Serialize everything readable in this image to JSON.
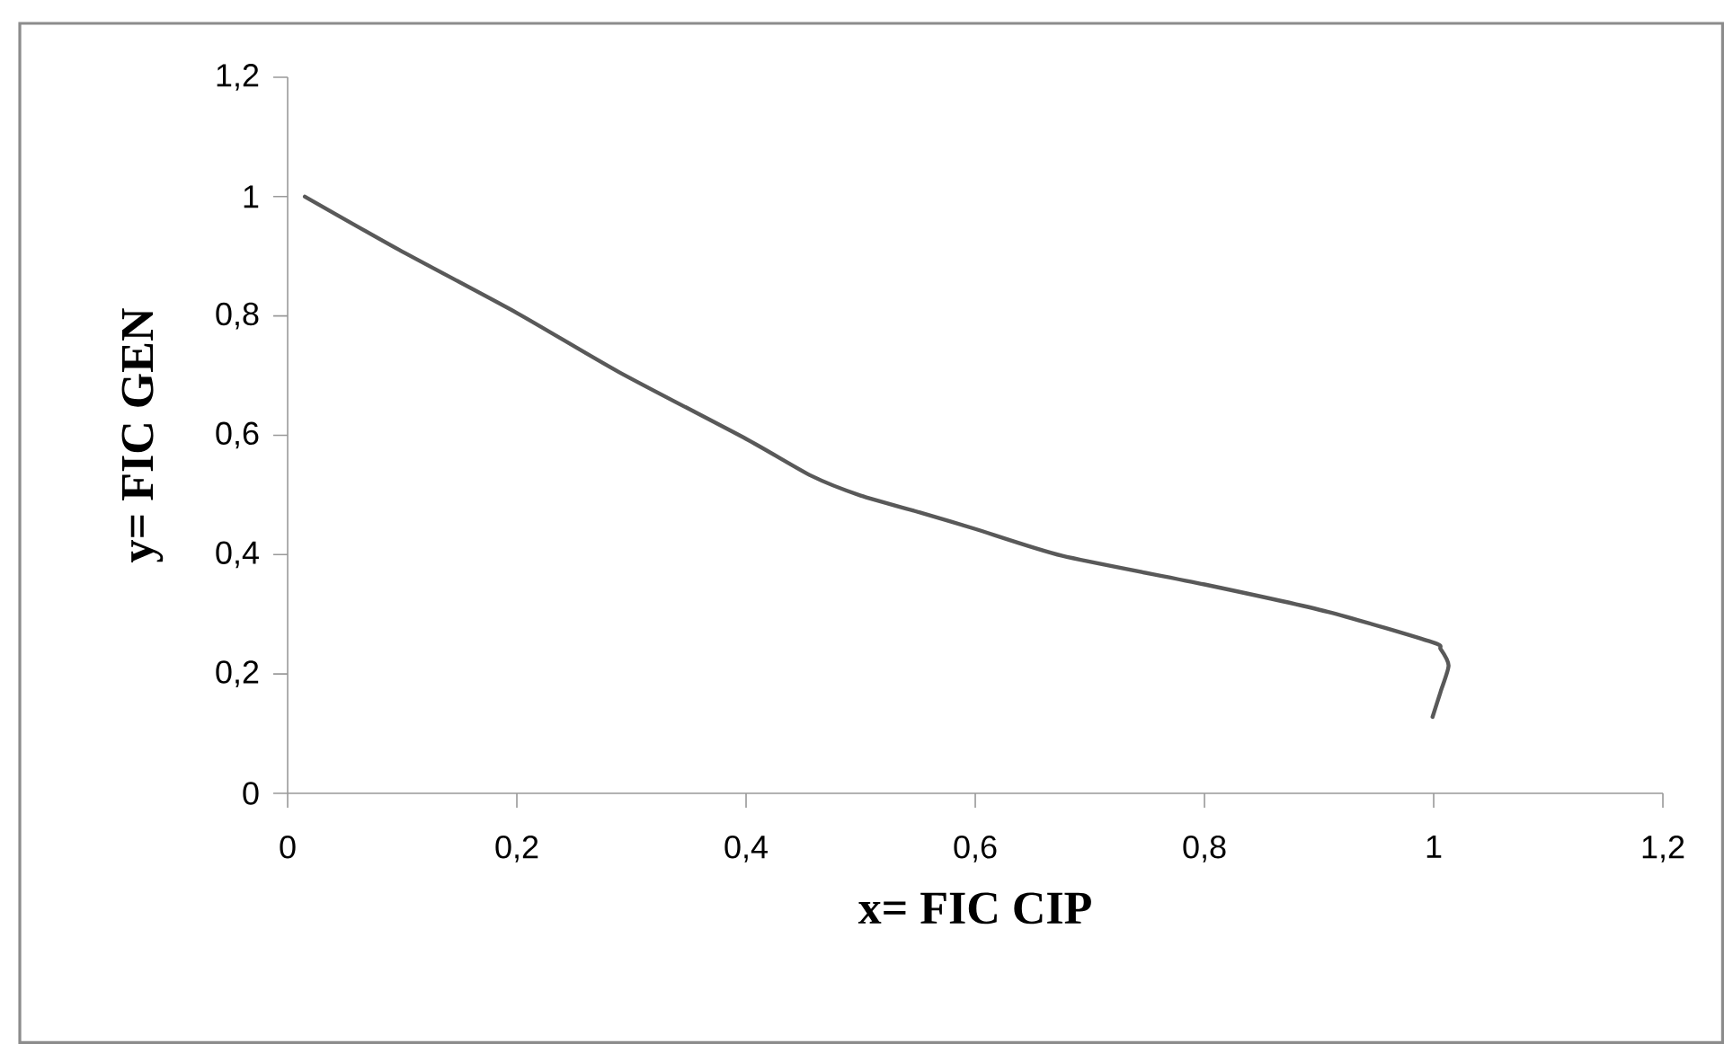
{
  "chart_data": {
    "type": "line",
    "xlabel": "x= FIC CIP",
    "ylabel": "y= FIC GEN",
    "x": [
      0.015,
      0.097,
      0.2,
      0.289,
      0.4,
      0.457,
      0.5,
      0.553,
      0.6,
      0.676,
      0.8,
      0.908,
      0.999,
      1.006,
      1.013,
      1.006,
      0.999
    ],
    "series": [
      {
        "color": "#595959",
        "values": [
          1.0,
          0.911,
          0.805,
          0.706,
          0.594,
          0.532,
          0.499,
          0.47,
          0.443,
          0.398,
          0.35,
          0.304,
          0.253,
          0.242,
          0.214,
          0.17,
          0.128
        ]
      }
    ],
    "xlim": [
      0,
      1.2
    ],
    "ylim": [
      0,
      1.2
    ],
    "xticks": [
      0,
      {
        "value": 0.2,
        "label": "0,2"
      },
      {
        "value": 0.4,
        "label": "0,4"
      },
      {
        "value": 0.6,
        "label": "0,6"
      },
      {
        "value": 0.8,
        "label": "0,8"
      },
      1,
      {
        "value": 1.2,
        "label": "1,2"
      }
    ],
    "yticks": [
      0,
      {
        "value": 0.2,
        "label": "0,2"
      },
      {
        "value": 0.4,
        "label": "0,4"
      },
      {
        "value": 0.6,
        "label": "0,6"
      },
      {
        "value": 0.8,
        "label": "0,8"
      },
      1,
      {
        "value": 1.2,
        "label": "1,2"
      }
    ],
    "grid": false,
    "legend": false,
    "marker": "none",
    "line_style": "solid"
  }
}
